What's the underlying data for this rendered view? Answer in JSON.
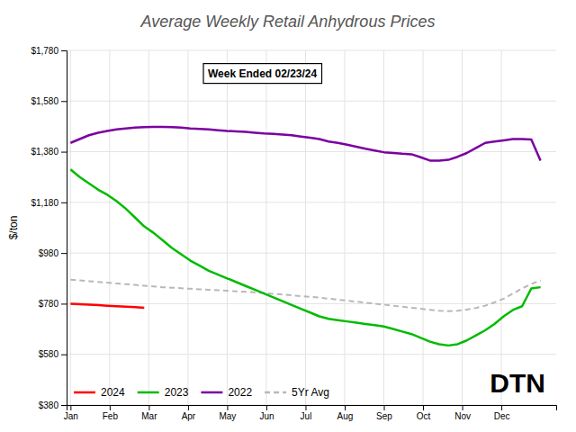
{
  "chart_data": {
    "type": "line",
    "title": "Average Weekly Retail Anhydrous Prices",
    "annotations": [
      "Week Ended 02/23/24",
      "DTN"
    ],
    "ylabel": "$/ton",
    "xlim": [
      -0.1,
      12.4
    ],
    "xticks": [
      {
        "value": 0,
        "label": "Jan"
      },
      {
        "value": 1,
        "label": "Feb"
      },
      {
        "value": 2,
        "label": "Mar"
      },
      {
        "value": 3,
        "label": "Apr"
      },
      {
        "value": 4,
        "label": "May"
      },
      {
        "value": 5,
        "label": "Jun"
      },
      {
        "value": 6,
        "label": "Jul"
      },
      {
        "value": 7,
        "label": "Aug"
      },
      {
        "value": 8,
        "label": "Sep"
      },
      {
        "value": 9,
        "label": "Oct"
      },
      {
        "value": 10,
        "label": "Nov"
      },
      {
        "value": 11,
        "label": "Dec"
      }
    ],
    "ylim": [
      380,
      1780
    ],
    "yticks": [
      {
        "value": 380,
        "label": "$380"
      },
      {
        "value": 580,
        "label": "$580"
      },
      {
        "value": 780,
        "label": "$780"
      },
      {
        "value": 980,
        "label": "$980"
      },
      {
        "value": 1180,
        "label": "$1,180"
      },
      {
        "value": 1380,
        "label": "$1,380"
      },
      {
        "value": 1580,
        "label": "$1,580"
      },
      {
        "value": 1780,
        "label": "$1,780"
      }
    ],
    "grid": true,
    "legend": "lower left",
    "series": [
      {
        "name": "5Yr Avg",
        "color": "#b8b8b8",
        "line_style": "dashed",
        "values": [
          875,
          872,
          869,
          866,
          863,
          860,
          857,
          854,
          851,
          848,
          845,
          843,
          841,
          839,
          837,
          835,
          833,
          831,
          829,
          827,
          825,
          822,
          819,
          816,
          813,
          810,
          807,
          804,
          800,
          796,
          792,
          788,
          784,
          780,
          776,
          772,
          768,
          764,
          760,
          756,
          752,
          750,
          752,
          757,
          763,
          772,
          785,
          800,
          820,
          840,
          858,
          872
        ]
      },
      {
        "name": "2022",
        "color": "#7b00a0",
        "line_style": "solid",
        "values": [
          1415,
          1430,
          1445,
          1455,
          1462,
          1468,
          1472,
          1475,
          1477,
          1478,
          1478,
          1477,
          1475,
          1472,
          1470,
          1468,
          1465,
          1462,
          1460,
          1458,
          1455,
          1452,
          1450,
          1448,
          1445,
          1440,
          1435,
          1430,
          1420,
          1415,
          1408,
          1400,
          1392,
          1385,
          1378,
          1375,
          1372,
          1370,
          1358,
          1345,
          1345,
          1348,
          1360,
          1375,
          1395,
          1415,
          1420,
          1425,
          1430,
          1430,
          1428,
          1345
        ]
      },
      {
        "name": "2023",
        "color": "#00bb00",
        "line_style": "solid",
        "values": [
          1310,
          1280,
          1255,
          1230,
          1210,
          1185,
          1155,
          1120,
          1085,
          1060,
          1030,
          1000,
          975,
          950,
          930,
          910,
          895,
          880,
          865,
          850,
          835,
          820,
          805,
          790,
          775,
          760,
          745,
          730,
          720,
          715,
          710,
          705,
          700,
          695,
          690,
          680,
          670,
          660,
          645,
          630,
          620,
          615,
          620,
          635,
          655,
          675,
          700,
          730,
          755,
          770,
          840,
          845
        ]
      },
      {
        "name": "2024",
        "color": "#ff0000",
        "line_style": "solid",
        "values": [
          780,
          778,
          776,
          774,
          772,
          770,
          768,
          766,
          764
        ]
      }
    ]
  }
}
